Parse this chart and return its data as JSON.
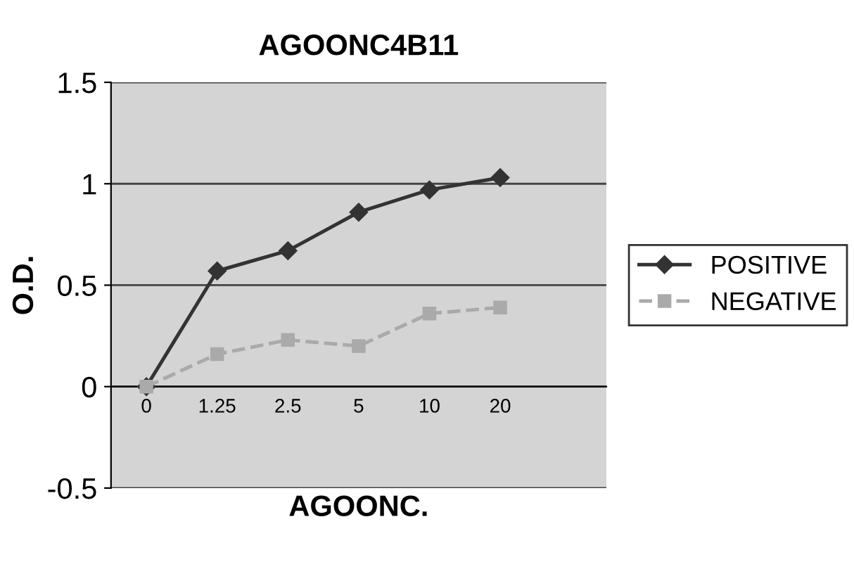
{
  "chart_data": {
    "type": "line",
    "title": "AGOONC4B11",
    "xlabel": "AGOONC.",
    "ylabel": "O.D.",
    "categories": [
      "0",
      "1.25",
      "2.5",
      "5",
      "10",
      "20",
      null
    ],
    "series": [
      {
        "name": "POSITIVE",
        "color": "#333333",
        "values": [
          0,
          0.57,
          0.67,
          0.86,
          0.97,
          1.03,
          null
        ],
        "marker": "diamond",
        "line_style": "solid"
      },
      {
        "name": "NEGATIVE",
        "color": "#aaaaaa",
        "values": [
          0,
          0.16,
          0.23,
          0.2,
          0.36,
          0.39,
          null
        ],
        "marker": "square",
        "line_style": "dashed"
      }
    ],
    "ylim": [
      -0.5,
      1.5
    ],
    "yticks": [
      -0.5,
      0,
      0.5,
      1,
      1.5
    ],
    "grid": "y",
    "legend": "right"
  }
}
